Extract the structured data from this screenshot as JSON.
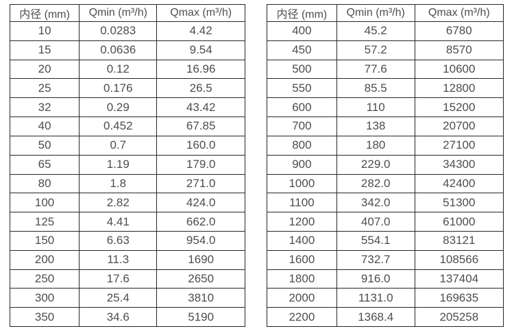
{
  "page": {
    "background_color": "#ffffff",
    "border_color": "#262626",
    "text_color": "#4d4d4d"
  },
  "tables": [
    {
      "title": "flow-table-small-diameters",
      "headers": [
        "内径 (mm)",
        "Qmin (m³/h)",
        "Qmax (m³/h)"
      ],
      "rows": [
        [
          "10",
          "0.0283",
          "4.42"
        ],
        [
          "15",
          "0.0636",
          "9.54"
        ],
        [
          "20",
          "0.12",
          "16.96"
        ],
        [
          "25",
          "0.176",
          "26.5"
        ],
        [
          "32",
          "0.29",
          "43.42"
        ],
        [
          "40",
          "0.452",
          "67.85"
        ],
        [
          "50",
          "0.7",
          "160.0"
        ],
        [
          "65",
          "1.19",
          "179.0"
        ],
        [
          "80",
          "1.8",
          "271.0"
        ],
        [
          "100",
          "2.82",
          "424.0"
        ],
        [
          "125",
          "4.41",
          "662.0"
        ],
        [
          "150",
          "6.63",
          "954.0"
        ],
        [
          "200",
          "11.3",
          "1690"
        ],
        [
          "250",
          "17.6",
          "2650"
        ],
        [
          "300",
          "25.4",
          "3810"
        ],
        [
          "350",
          "34.6",
          "5190"
        ]
      ]
    },
    {
      "title": "flow-table-large-diameters",
      "headers": [
        "内径 (mm)",
        "Qmin (m³/h)",
        "Qmax (m³/h)"
      ],
      "rows": [
        [
          "400",
          "45.2",
          "6780"
        ],
        [
          "450",
          "57.2",
          "8570"
        ],
        [
          "500",
          "77.6",
          "10600"
        ],
        [
          "550",
          "85.5",
          "12800"
        ],
        [
          "600",
          "110",
          "15200"
        ],
        [
          "700",
          "138",
          "20700"
        ],
        [
          "800",
          "180",
          "27100"
        ],
        [
          "900",
          "229.0",
          "34300"
        ],
        [
          "1000",
          "282.0",
          "42400"
        ],
        [
          "1100",
          "342.0",
          "51300"
        ],
        [
          "1200",
          "407.0",
          "61000"
        ],
        [
          "1400",
          "554.1",
          "83121"
        ],
        [
          "1600",
          "732.7",
          "108566"
        ],
        [
          "1800",
          "916.0",
          "137404"
        ],
        [
          "2000",
          "1131.0",
          "169635"
        ],
        [
          "2200",
          "1368.4",
          "205258"
        ]
      ]
    }
  ]
}
